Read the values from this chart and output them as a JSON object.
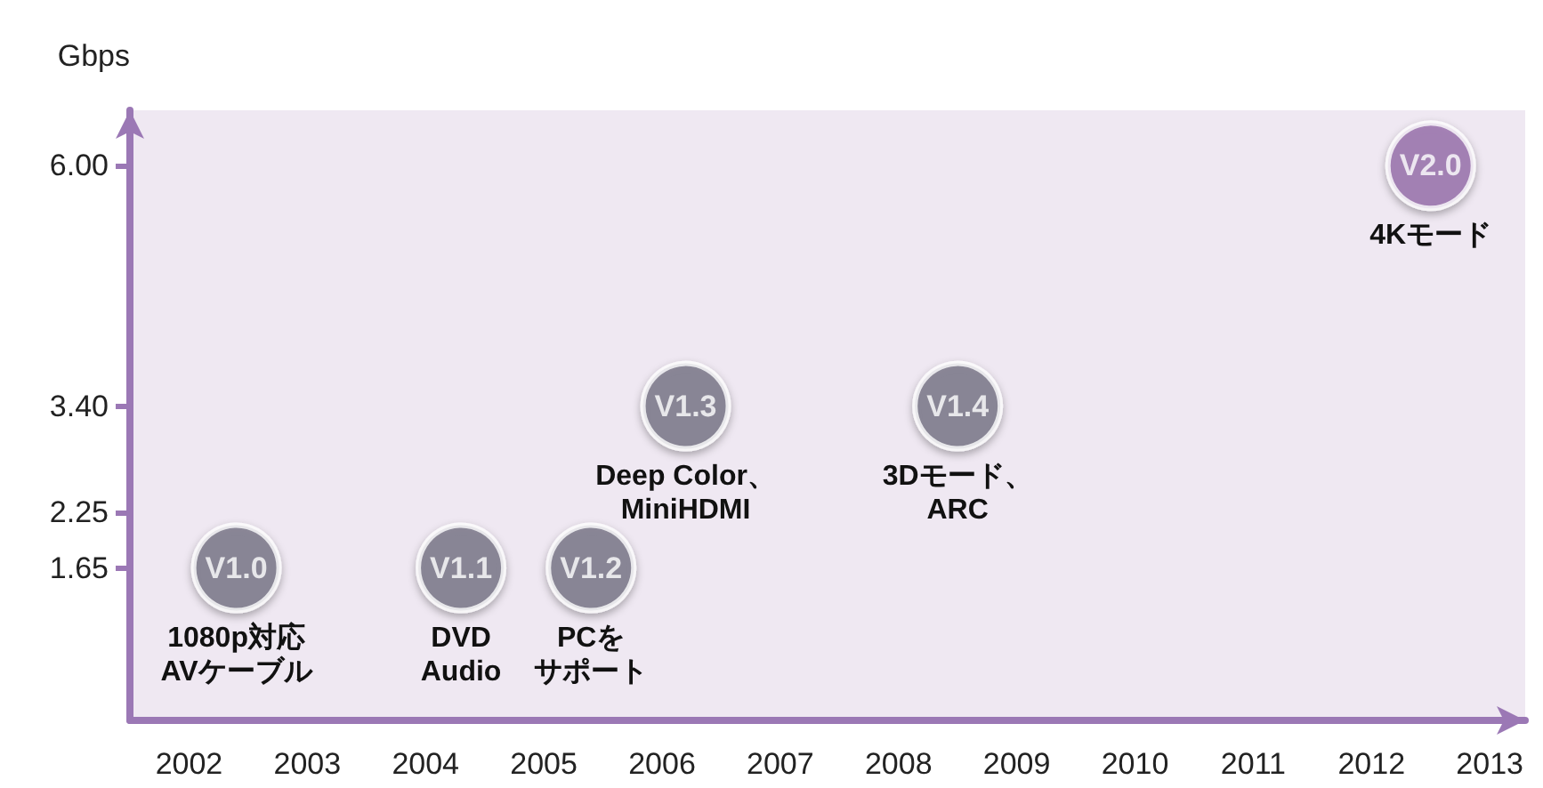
{
  "chart_data": {
    "type": "scatter",
    "ylabel": "Gbps",
    "x": [
      2002.4,
      2004.3,
      2005.4,
      2006.2,
      2008.5,
      2012.5
    ],
    "values": [
      1.65,
      1.65,
      1.65,
      3.4,
      3.4,
      6.0
    ],
    "colors": [
      "#7a7889",
      "#7a7889",
      "#7a7889",
      "#7a7889",
      "#7a7889",
      "#9a72ae"
    ],
    "value_labels": [
      "V1.0",
      "V1.1",
      "V1.2",
      "V1.3",
      "V1.4",
      "V2.0"
    ],
    "annotations": [
      {
        "text": "1080p対応\nAVケーブル",
        "x": 2002.4,
        "y": 1.65
      },
      {
        "text": "DVD\nAudio",
        "x": 2004.3,
        "y": 1.65
      },
      {
        "text": "PCをサポート",
        "x": 2005.4,
        "y": 1.65
      },
      {
        "text": "Deep Color、\nMiniHDMI",
        "x": 2006.2,
        "y": 3.4
      },
      {
        "text": "3Dモード、\nARC",
        "x": 2008.5,
        "y": 3.4
      },
      {
        "text": "4Kモード",
        "x": 2012.5,
        "y": 6.0
      }
    ],
    "xlim": [
      2001.5,
      2013.3
    ],
    "xticks": [
      2002,
      2003,
      2004,
      2005,
      2006,
      2007,
      2008,
      2009,
      2010,
      2011,
      2012,
      2013
    ],
    "ylim": [
      0,
      6.6
    ],
    "yticks": [
      {
        "value": 1.65,
        "label": "1.65"
      },
      {
        "value": 2.25,
        "label": "2.25"
      },
      {
        "value": 3.4,
        "label": "3.40"
      },
      {
        "value": 6,
        "label": "6.00"
      }
    ],
    "marker": "circle",
    "grid": false
  }
}
